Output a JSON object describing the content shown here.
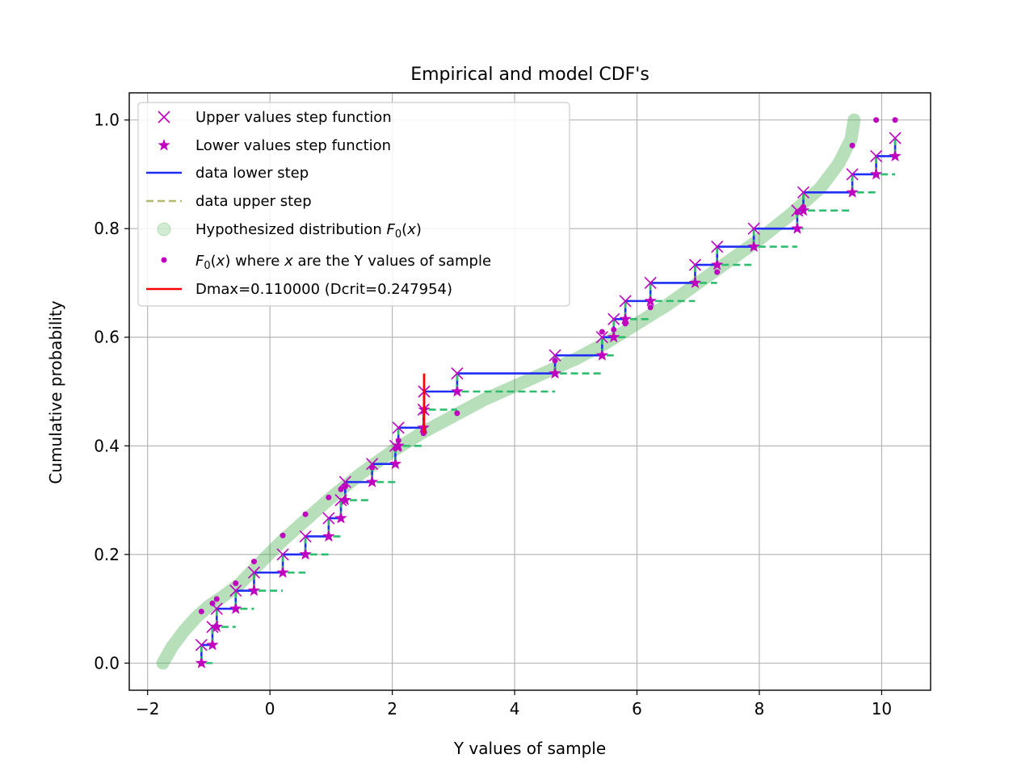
{
  "chart_data": {
    "type": "line",
    "title": "Empirical and model CDF's",
    "xlabel": "Y values of sample",
    "ylabel": "Cumulative probability",
    "xlim": [
      -2.3,
      10.8
    ],
    "ylim": [
      -0.05,
      1.05
    ],
    "xticks": [
      -2,
      0,
      2,
      4,
      6,
      8,
      10
    ],
    "xtick_labels": [
      "−2",
      "0",
      "2",
      "4",
      "6",
      "8",
      "10"
    ],
    "yticks": [
      0.0,
      0.2,
      0.4,
      0.6,
      0.8,
      1.0
    ],
    "ytick_labels": [
      "0.0",
      "0.2",
      "0.4",
      "0.6",
      "0.8",
      "1.0"
    ],
    "grid": true,
    "legend_position": "upper-left",
    "sample_x": [
      -1.12,
      -0.94,
      -0.87,
      -0.56,
      -0.26,
      0.21,
      0.58,
      0.96,
      1.16,
      1.23,
      1.67,
      2.05,
      2.1,
      2.51,
      2.52,
      3.06,
      4.66,
      5.43,
      5.62,
      5.81,
      6.22,
      6.95,
      7.31,
      7.91,
      8.62,
      8.72,
      9.52,
      9.91,
      10.22
    ],
    "sample_f0": [
      0.095,
      0.11,
      0.118,
      0.147,
      0.187,
      0.235,
      0.274,
      0.305,
      0.32,
      0.325,
      0.36,
      0.395,
      0.41,
      0.423,
      0.425,
      0.46,
      0.557,
      0.61,
      0.614,
      0.625,
      0.655,
      0.7,
      0.72,
      0.766,
      0.83,
      0.84,
      0.953,
      1.0,
      1.0
    ],
    "series": [
      {
        "name": "Upper values step function",
        "marker": "x",
        "color": "#bf00bf"
      },
      {
        "name": "Lower values step function",
        "marker": "*",
        "color": "#bf00bf"
      },
      {
        "name": "data lower step",
        "style": "solid",
        "color": "#1f2ef2"
      },
      {
        "name": "data upper step",
        "style": "dashed",
        "color": "#b5b96f",
        "plot_color": "#2ebd6f"
      },
      {
        "name": "Hypothesized distribution F0(x)",
        "marker": "o",
        "color": "#4caf50"
      },
      {
        "name": "F0(x) where x are the Y values of sample",
        "marker": ".",
        "color": "#bf00bf"
      },
      {
        "name": "Dmax=0.110000 (Dcrit=0.247954)",
        "style": "solid",
        "color": "#ff0000"
      }
    ],
    "dmax": {
      "x": 2.52,
      "y_from": 0.423,
      "y_to": 0.533
    },
    "hypothesized_curve": {
      "x": [
        -1.75,
        -1.6,
        -1.4,
        -1.2,
        -1.0,
        -0.8,
        -0.5,
        -0.2,
        0.2,
        0.6,
        1.0,
        1.5,
        2.0,
        2.5,
        3.0,
        3.5,
        4.0,
        4.5,
        5.0,
        5.5,
        6.0,
        6.5,
        7.0,
        7.5,
        8.0,
        8.5,
        9.0,
        9.3,
        9.5,
        9.55
      ],
      "y": [
        0.0,
        0.03,
        0.06,
        0.085,
        0.105,
        0.12,
        0.145,
        0.18,
        0.225,
        0.265,
        0.305,
        0.35,
        0.39,
        0.425,
        0.455,
        0.485,
        0.51,
        0.535,
        0.56,
        0.59,
        0.625,
        0.66,
        0.7,
        0.74,
        0.78,
        0.825,
        0.875,
        0.92,
        0.965,
        1.0
      ]
    }
  },
  "legend": {
    "items": [
      {
        "text": "Upper values step function"
      },
      {
        "text": "Lower values step function"
      },
      {
        "text": "data lower step"
      },
      {
        "text": "data upper step"
      },
      {
        "text_pre": "Hypothesized distribution ",
        "math": "F",
        "sub": "0",
        "text_post": "(x)"
      },
      {
        "math": "F",
        "sub": "0",
        "text_mid": "(x) where ",
        "mathx": "x",
        "text_post": " are the Y values of sample"
      },
      {
        "text": "Dmax=0.110000 (Dcrit=0.247954)"
      }
    ]
  }
}
